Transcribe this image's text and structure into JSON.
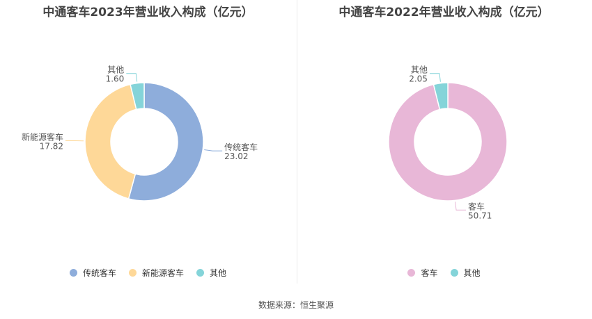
{
  "source": "数据来源：恒生聚源",
  "chart_data": [
    {
      "type": "pie",
      "title": "中通客车2023年营业收入构成（亿元）",
      "donut": true,
      "slices": [
        {
          "label": "传统客车",
          "value": 23.02,
          "value_text": "23.02",
          "color": "#8eaddb"
        },
        {
          "label": "新能源客车",
          "value": 17.82,
          "value_text": "17.82",
          "color": "#fed898"
        },
        {
          "label": "其他",
          "value": 1.6,
          "value_text": "1.60",
          "color": "#84d4d9"
        }
      ],
      "legend": [
        "传统客车",
        "新能源客车",
        "其他"
      ],
      "legend_position": "bottom"
    },
    {
      "type": "pie",
      "title": "中通客车2022年营业收入构成（亿元）",
      "donut": true,
      "slices": [
        {
          "label": "客车",
          "value": 50.71,
          "value_text": "50.71",
          "color": "#e8b7d7"
        },
        {
          "label": "其他",
          "value": 2.05,
          "value_text": "2.05",
          "color": "#84d4d9"
        }
      ],
      "legend": [
        "客车",
        "其他"
      ],
      "legend_position": "bottom"
    }
  ]
}
